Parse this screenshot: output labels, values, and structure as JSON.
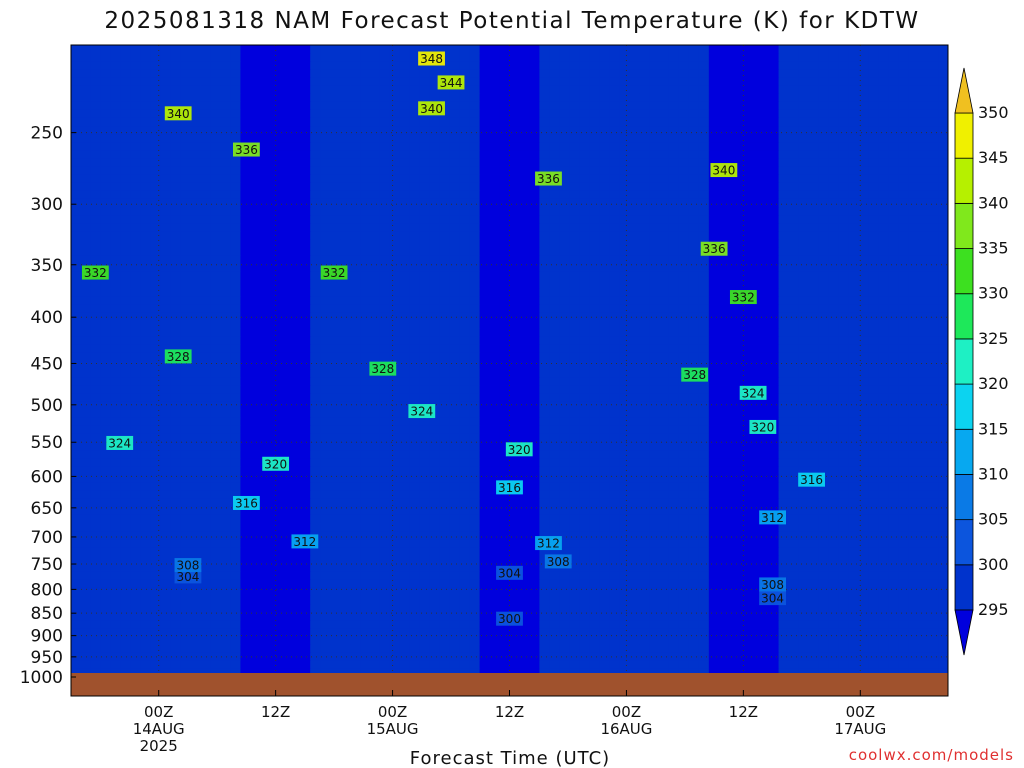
{
  "chart_data": {
    "type": "heatmap",
    "title": "2025081318 NAM Forecast Potential Temperature (K) for KDTW",
    "xlabel": "Forecast Time (UTC)",
    "ylabel": "",
    "y_scale": "log-pressure",
    "ylim": [
      1000,
      200
    ],
    "y_ticks": [
      250,
      300,
      350,
      400,
      450,
      500,
      550,
      600,
      650,
      700,
      750,
      800,
      850,
      900,
      950,
      1000
    ],
    "x_start_hour": -3,
    "x_end_hour": 87,
    "x_ticks": [
      {
        "hour": 6,
        "line1": "00Z",
        "line2": "14AUG",
        "line3": "2025"
      },
      {
        "hour": 18,
        "line1": "12Z",
        "line2": "",
        "line3": ""
      },
      {
        "hour": 30,
        "line1": "00Z",
        "line2": "15AUG",
        "line3": ""
      },
      {
        "hour": 42,
        "line1": "12Z",
        "line2": "",
        "line3": ""
      },
      {
        "hour": 54,
        "line1": "00Z",
        "line2": "16AUG",
        "line3": ""
      },
      {
        "hour": 66,
        "line1": "12Z",
        "line2": "",
        "line3": ""
      },
      {
        "hour": 78,
        "line1": "00Z",
        "line2": "17AUG",
        "line3": ""
      }
    ],
    "colorbar": {
      "levels": [
        295,
        300,
        305,
        310,
        315,
        320,
        325,
        330,
        335,
        340,
        345,
        350
      ],
      "colors": [
        "#0000dd",
        "#0033cc",
        "#0c55dd",
        "#0a7ae6",
        "#07a8f0",
        "#0cd3f0",
        "#1ef0c4",
        "#1ee85a",
        "#3de020",
        "#80e81c",
        "#b6f000",
        "#f0f000",
        "#f0c020"
      ]
    },
    "profile_pressure": [
      1000,
      975,
      950,
      925,
      900,
      850,
      800,
      750,
      700,
      650,
      600,
      550,
      500,
      450,
      400,
      350,
      300,
      250,
      200
    ],
    "theta_profile": [
      298,
      300,
      301.5,
      302.5,
      303.5,
      304.5,
      305.5,
      307.5,
      310.5,
      314.0,
      316.5,
      319.0,
      322.5,
      326.5,
      329.5,
      332.0,
      335.5,
      339.0,
      346.0
    ],
    "contour_levels": [
      300,
      304,
      308,
      312,
      316,
      320,
      324,
      328,
      332,
      336,
      340,
      344,
      348
    ],
    "contour_labels": [
      {
        "level": "300",
        "hour": 42,
        "p": 862
      },
      {
        "level": "304",
        "hour": 9,
        "p": 774
      },
      {
        "level": "304",
        "hour": 42,
        "p": 767
      },
      {
        "level": "304",
        "hour": 69,
        "p": 818
      },
      {
        "level": "308",
        "hour": 9,
        "p": 752
      },
      {
        "level": "308",
        "hour": 47,
        "p": 745
      },
      {
        "level": "308",
        "hour": 69,
        "p": 790
      },
      {
        "level": "312",
        "hour": 21,
        "p": 708
      },
      {
        "level": "312",
        "hour": 46,
        "p": 711
      },
      {
        "level": "312",
        "hour": 69,
        "p": 666
      },
      {
        "level": "316",
        "hour": 15,
        "p": 642
      },
      {
        "level": "316",
        "hour": 42,
        "p": 617
      },
      {
        "level": "316",
        "hour": 73,
        "p": 605
      },
      {
        "level": "320",
        "hour": 18,
        "p": 581
      },
      {
        "level": "320",
        "hour": 43,
        "p": 560
      },
      {
        "level": "320",
        "hour": 68,
        "p": 529
      },
      {
        "level": "324",
        "hour": 2,
        "p": 551
      },
      {
        "level": "324",
        "hour": 33,
        "p": 508
      },
      {
        "level": "324",
        "hour": 67,
        "p": 485
      },
      {
        "level": "328",
        "hour": 8,
        "p": 442
      },
      {
        "level": "328",
        "hour": 29,
        "p": 456
      },
      {
        "level": "328",
        "hour": 61,
        "p": 463
      },
      {
        "level": "332",
        "hour": -0.5,
        "p": 357
      },
      {
        "level": "332",
        "hour": 24,
        "p": 357
      },
      {
        "level": "332",
        "hour": 66,
        "p": 380
      },
      {
        "level": "336",
        "hour": 15,
        "p": 261
      },
      {
        "level": "336",
        "hour": 46,
        "p": 281
      },
      {
        "level": "336",
        "hour": 63,
        "p": 336
      },
      {
        "level": "340",
        "hour": 8,
        "p": 238
      },
      {
        "level": "340",
        "hour": 34,
        "p": 235
      },
      {
        "level": "340",
        "hour": 64,
        "p": 275
      },
      {
        "level": "344",
        "hour": 36,
        "p": 220
      },
      {
        "level": "348",
        "hour": 34,
        "p": 207
      }
    ],
    "ground_color": "#a0522d"
  },
  "credit": "coolwx.com/models"
}
